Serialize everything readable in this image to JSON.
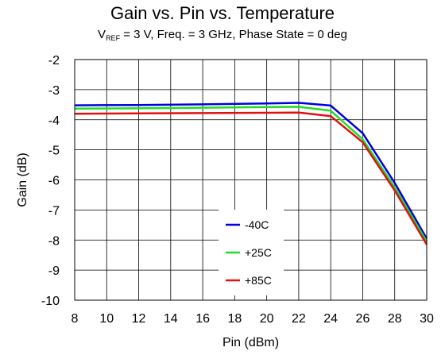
{
  "chart_data": {
    "type": "line",
    "title": "Gain vs. Pin vs. Temperature",
    "subtitle": {
      "prefix": "V",
      "subscript": "REF",
      "rest": " = 3 V, Freq. = 3 GHz, Phase State = 0 deg"
    },
    "xlabel": "Pin (dBm)",
    "ylabel": "Gain (dB)",
    "xlim": [
      8,
      30
    ],
    "ylim": [
      -10,
      -2
    ],
    "xticks": [
      "8",
      "10",
      "12",
      "14",
      "16",
      "18",
      "20",
      "22",
      "24",
      "26",
      "28",
      "30"
    ],
    "yticks": [
      "-2",
      "-3",
      "-4",
      "-5",
      "-6",
      "-7",
      "-8",
      "-9",
      "-10"
    ],
    "grid": true,
    "legend_position": "bottom-center",
    "x": [
      8,
      12,
      16,
      20,
      22,
      24,
      26,
      28,
      30
    ],
    "series": [
      {
        "name": "-40C",
        "color": "#0000e0",
        "values": [
          -3.52,
          -3.51,
          -3.49,
          -3.46,
          -3.44,
          -3.53,
          -4.45,
          -6.1,
          -7.95
        ]
      },
      {
        "name": "+25C",
        "color": "#22dd22",
        "values": [
          -3.63,
          -3.62,
          -3.6,
          -3.58,
          -3.57,
          -3.7,
          -4.65,
          -6.25,
          -8.05
        ]
      },
      {
        "name": "+85C",
        "color": "#e01010",
        "values": [
          -3.8,
          -3.79,
          -3.78,
          -3.77,
          -3.76,
          -3.88,
          -4.75,
          -6.35,
          -8.15
        ]
      }
    ]
  }
}
